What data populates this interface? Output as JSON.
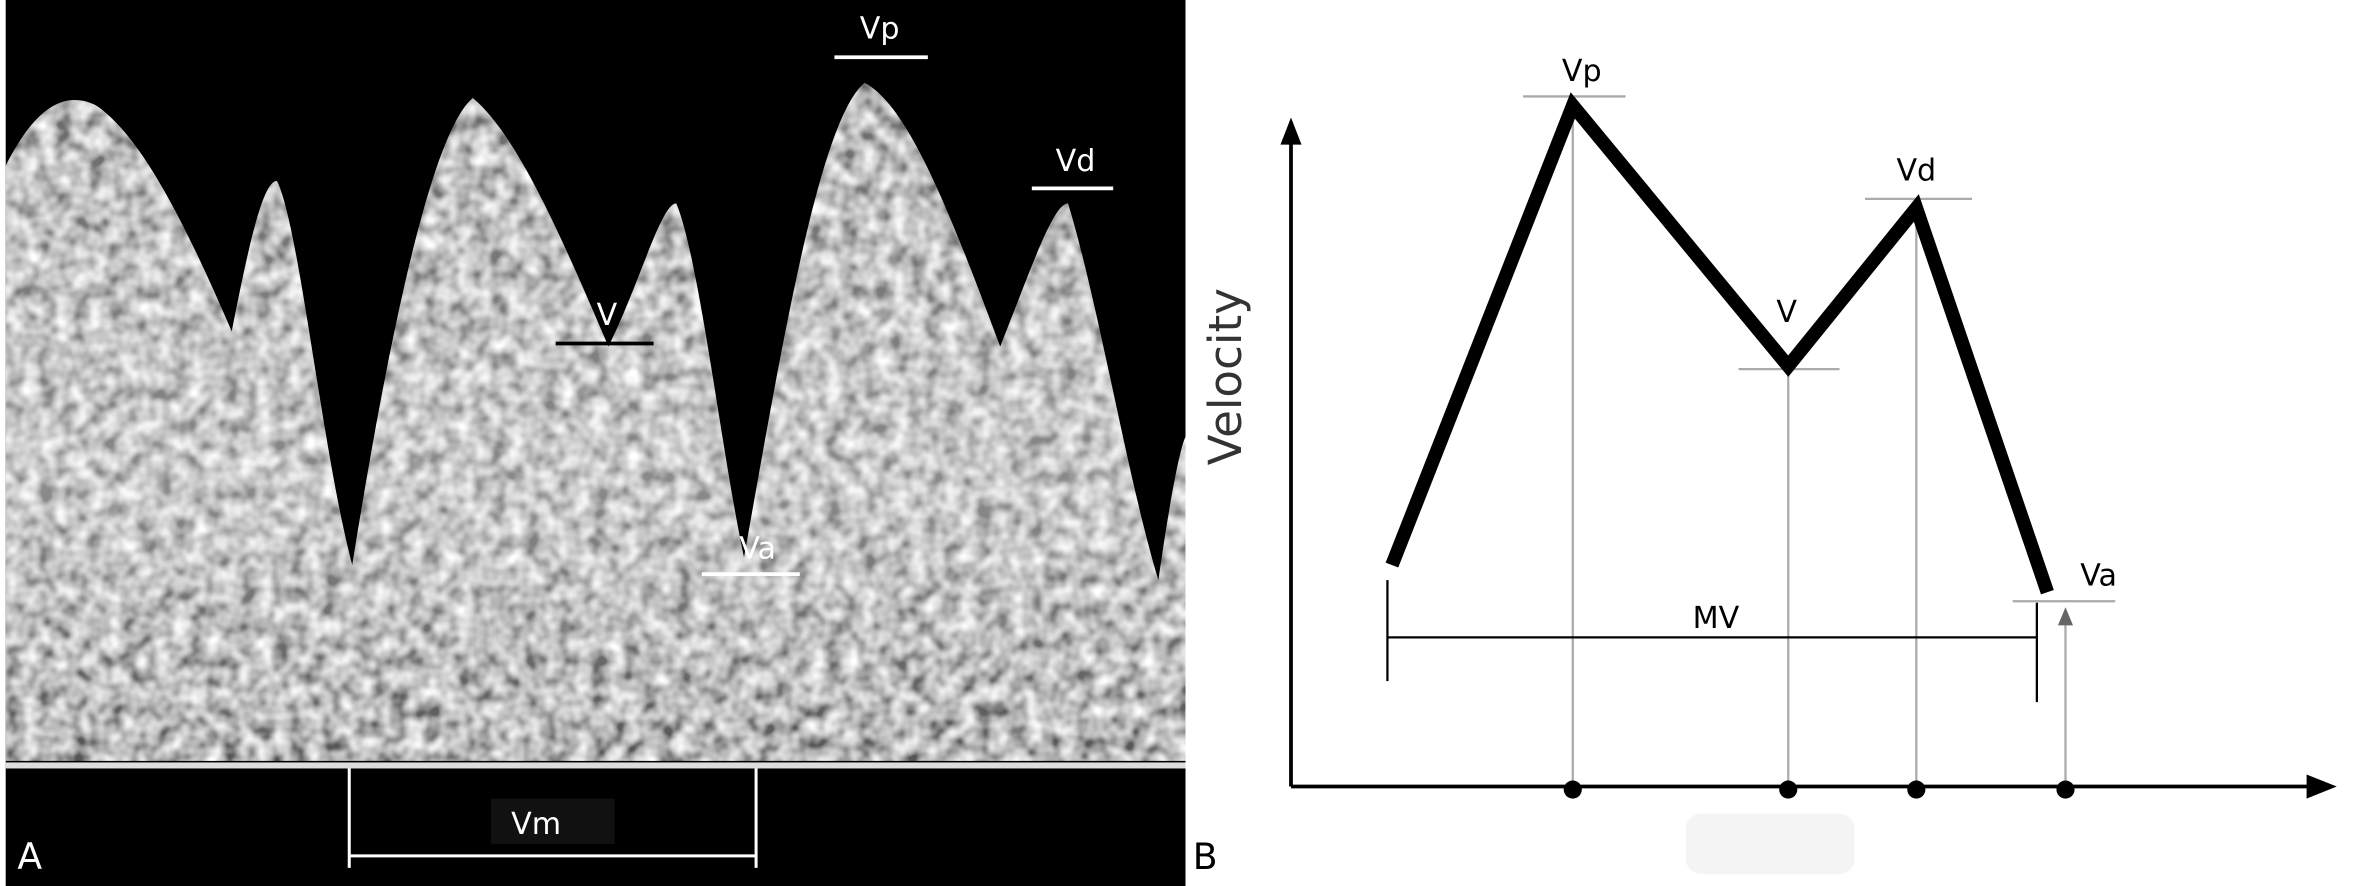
{
  "panel_a": {
    "label": "A",
    "markers": {
      "vp": "Vp",
      "vd": "Vd",
      "v": "V",
      "va": "Va",
      "vm": "Vm"
    }
  },
  "panel_b": {
    "label": "B",
    "y_axis_label": "Velocity",
    "markers": {
      "vp": "Vp",
      "vd": "Vd",
      "v": "V",
      "va": "Va",
      "mv": "MV"
    }
  }
}
